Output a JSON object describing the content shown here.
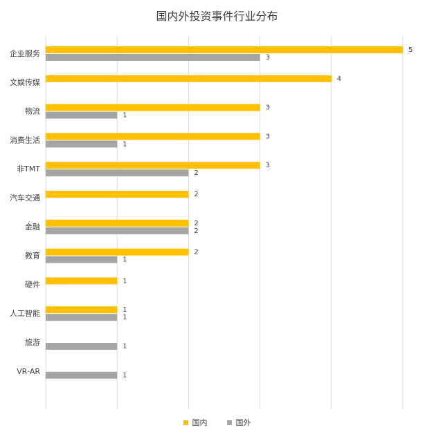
{
  "chart_data": {
    "type": "bar",
    "orientation": "horizontal",
    "title": "国内外投资事件行业分布",
    "categories": [
      "企业服务",
      "文娱传媒",
      "物流",
      "消费生活",
      "非TMT",
      "汽车交通",
      "金融",
      "教育",
      "硬件",
      "人工智能",
      "旅游",
      "VR·AR"
    ],
    "series": [
      {
        "name": "国内",
        "color": "#FFC000",
        "values": [
          5,
          4,
          3,
          3,
          3,
          2,
          2,
          2,
          1,
          1,
          null,
          null
        ]
      },
      {
        "name": "国外",
        "color": "#A5A5A5",
        "values": [
          3,
          null,
          1,
          1,
          2,
          null,
          2,
          1,
          null,
          1,
          1,
          1
        ]
      }
    ],
    "xlim": [
      0,
      5
    ],
    "grid": "vertical",
    "legend": "bottom"
  }
}
